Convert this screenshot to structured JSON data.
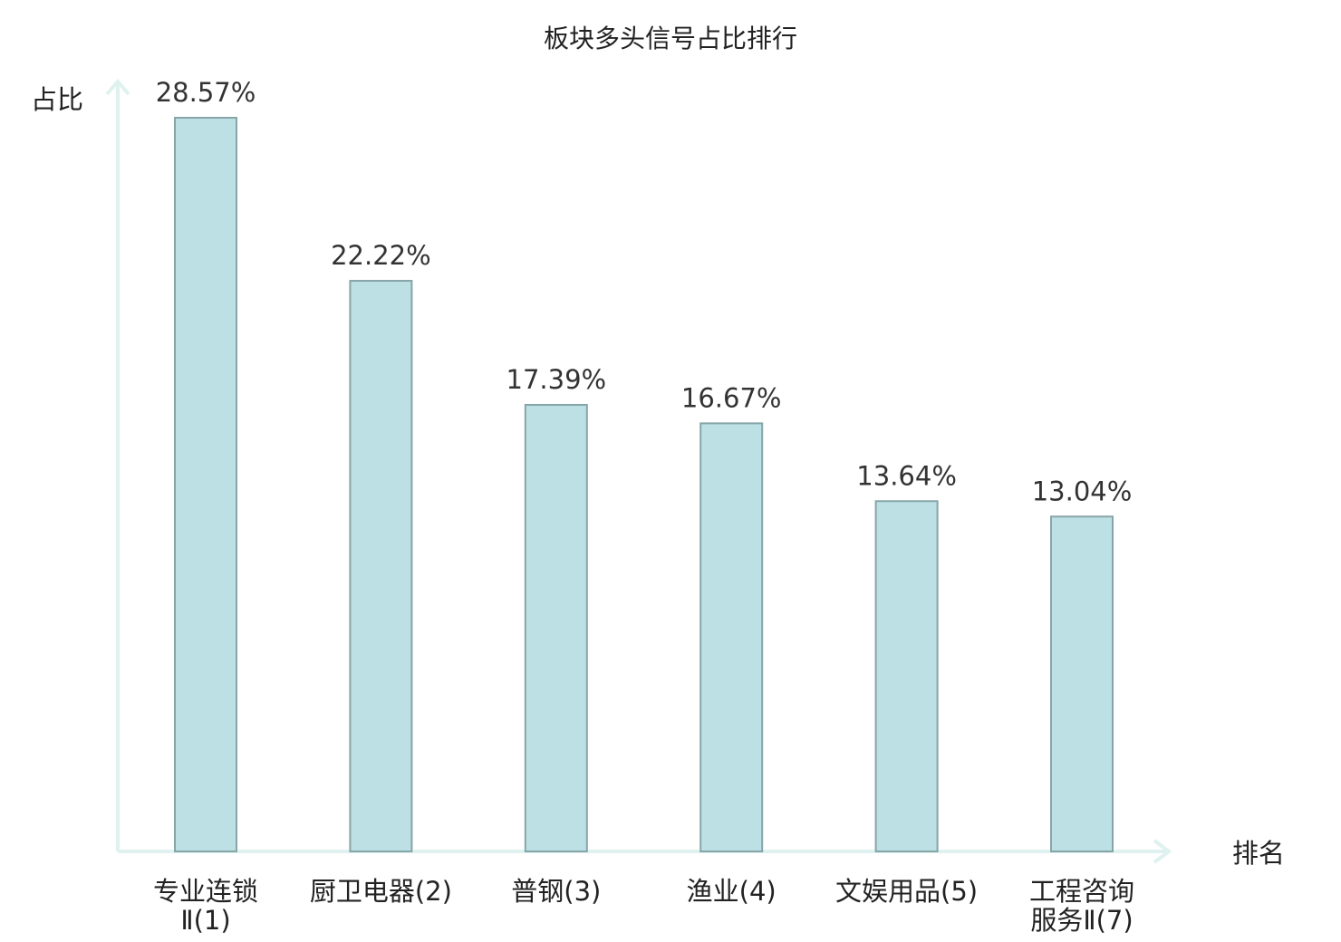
{
  "chart_data": {
    "type": "bar",
    "title": "板块多头信号占比排行",
    "ylabel": "占比",
    "xlabel": "排名",
    "ylim": [
      0,
      30
    ],
    "grid": false,
    "categories": [
      [
        "专业连锁",
        "Ⅱ(1)"
      ],
      [
        "厨卫电器(2)"
      ],
      [
        "普钢(3)"
      ],
      [
        "渔业(4)"
      ],
      [
        "文娱用品(5)"
      ],
      [
        "工程咨询",
        "服务Ⅱ(7)"
      ]
    ],
    "values": [
      28.57,
      22.22,
      17.39,
      16.67,
      13.64,
      13.04
    ],
    "value_labels": [
      "28.57%",
      "22.22%",
      "17.39%",
      "16.67%",
      "13.64%",
      "13.04%"
    ],
    "highlight_index": 5
  },
  "colors": {
    "bar_fill": "#bce0e3",
    "bar_stroke": "#86a5a8",
    "axis": "#dff2ef",
    "highlight_label": "#e0191b",
    "text": "#222222"
  }
}
